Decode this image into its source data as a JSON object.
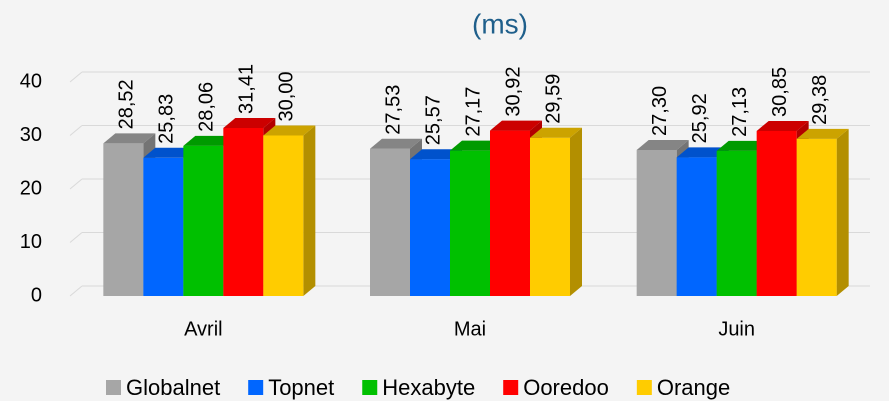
{
  "chart_data": {
    "type": "bar3d",
    "title": "(ms)",
    "categories": [
      "Avril",
      "Mai",
      "Juin"
    ],
    "series": [
      {
        "name": "Globalnet",
        "color": "#a6a6a6",
        "values": [
          28.52,
          27.53,
          27.3
        ],
        "value_labels": [
          "28,52",
          "27,53",
          "27,30"
        ]
      },
      {
        "name": "Topnet",
        "color": "#0066ff",
        "values": [
          25.83,
          25.57,
          25.92
        ],
        "value_labels": [
          "25,83",
          "25,57",
          "25,92"
        ]
      },
      {
        "name": "Hexabyte",
        "color": "#00c000",
        "values": [
          28.06,
          27.17,
          27.13
        ],
        "value_labels": [
          "28,06",
          "27,17",
          "27,13"
        ]
      },
      {
        "name": "Ooredoo",
        "color": "#ff0000",
        "values": [
          31.41,
          30.92,
          30.85
        ],
        "value_labels": [
          "31,41",
          "30,92",
          "30,85"
        ]
      },
      {
        "name": "Orange",
        "color": "#ffcc00",
        "values": [
          30.0,
          29.59,
          29.38
        ],
        "value_labels": [
          "30,00",
          "29,59",
          "29,38"
        ]
      }
    ],
    "ylim": [
      0,
      40
    ],
    "yticks": [
      0,
      10,
      20,
      30,
      40
    ],
    "grid": true
  }
}
